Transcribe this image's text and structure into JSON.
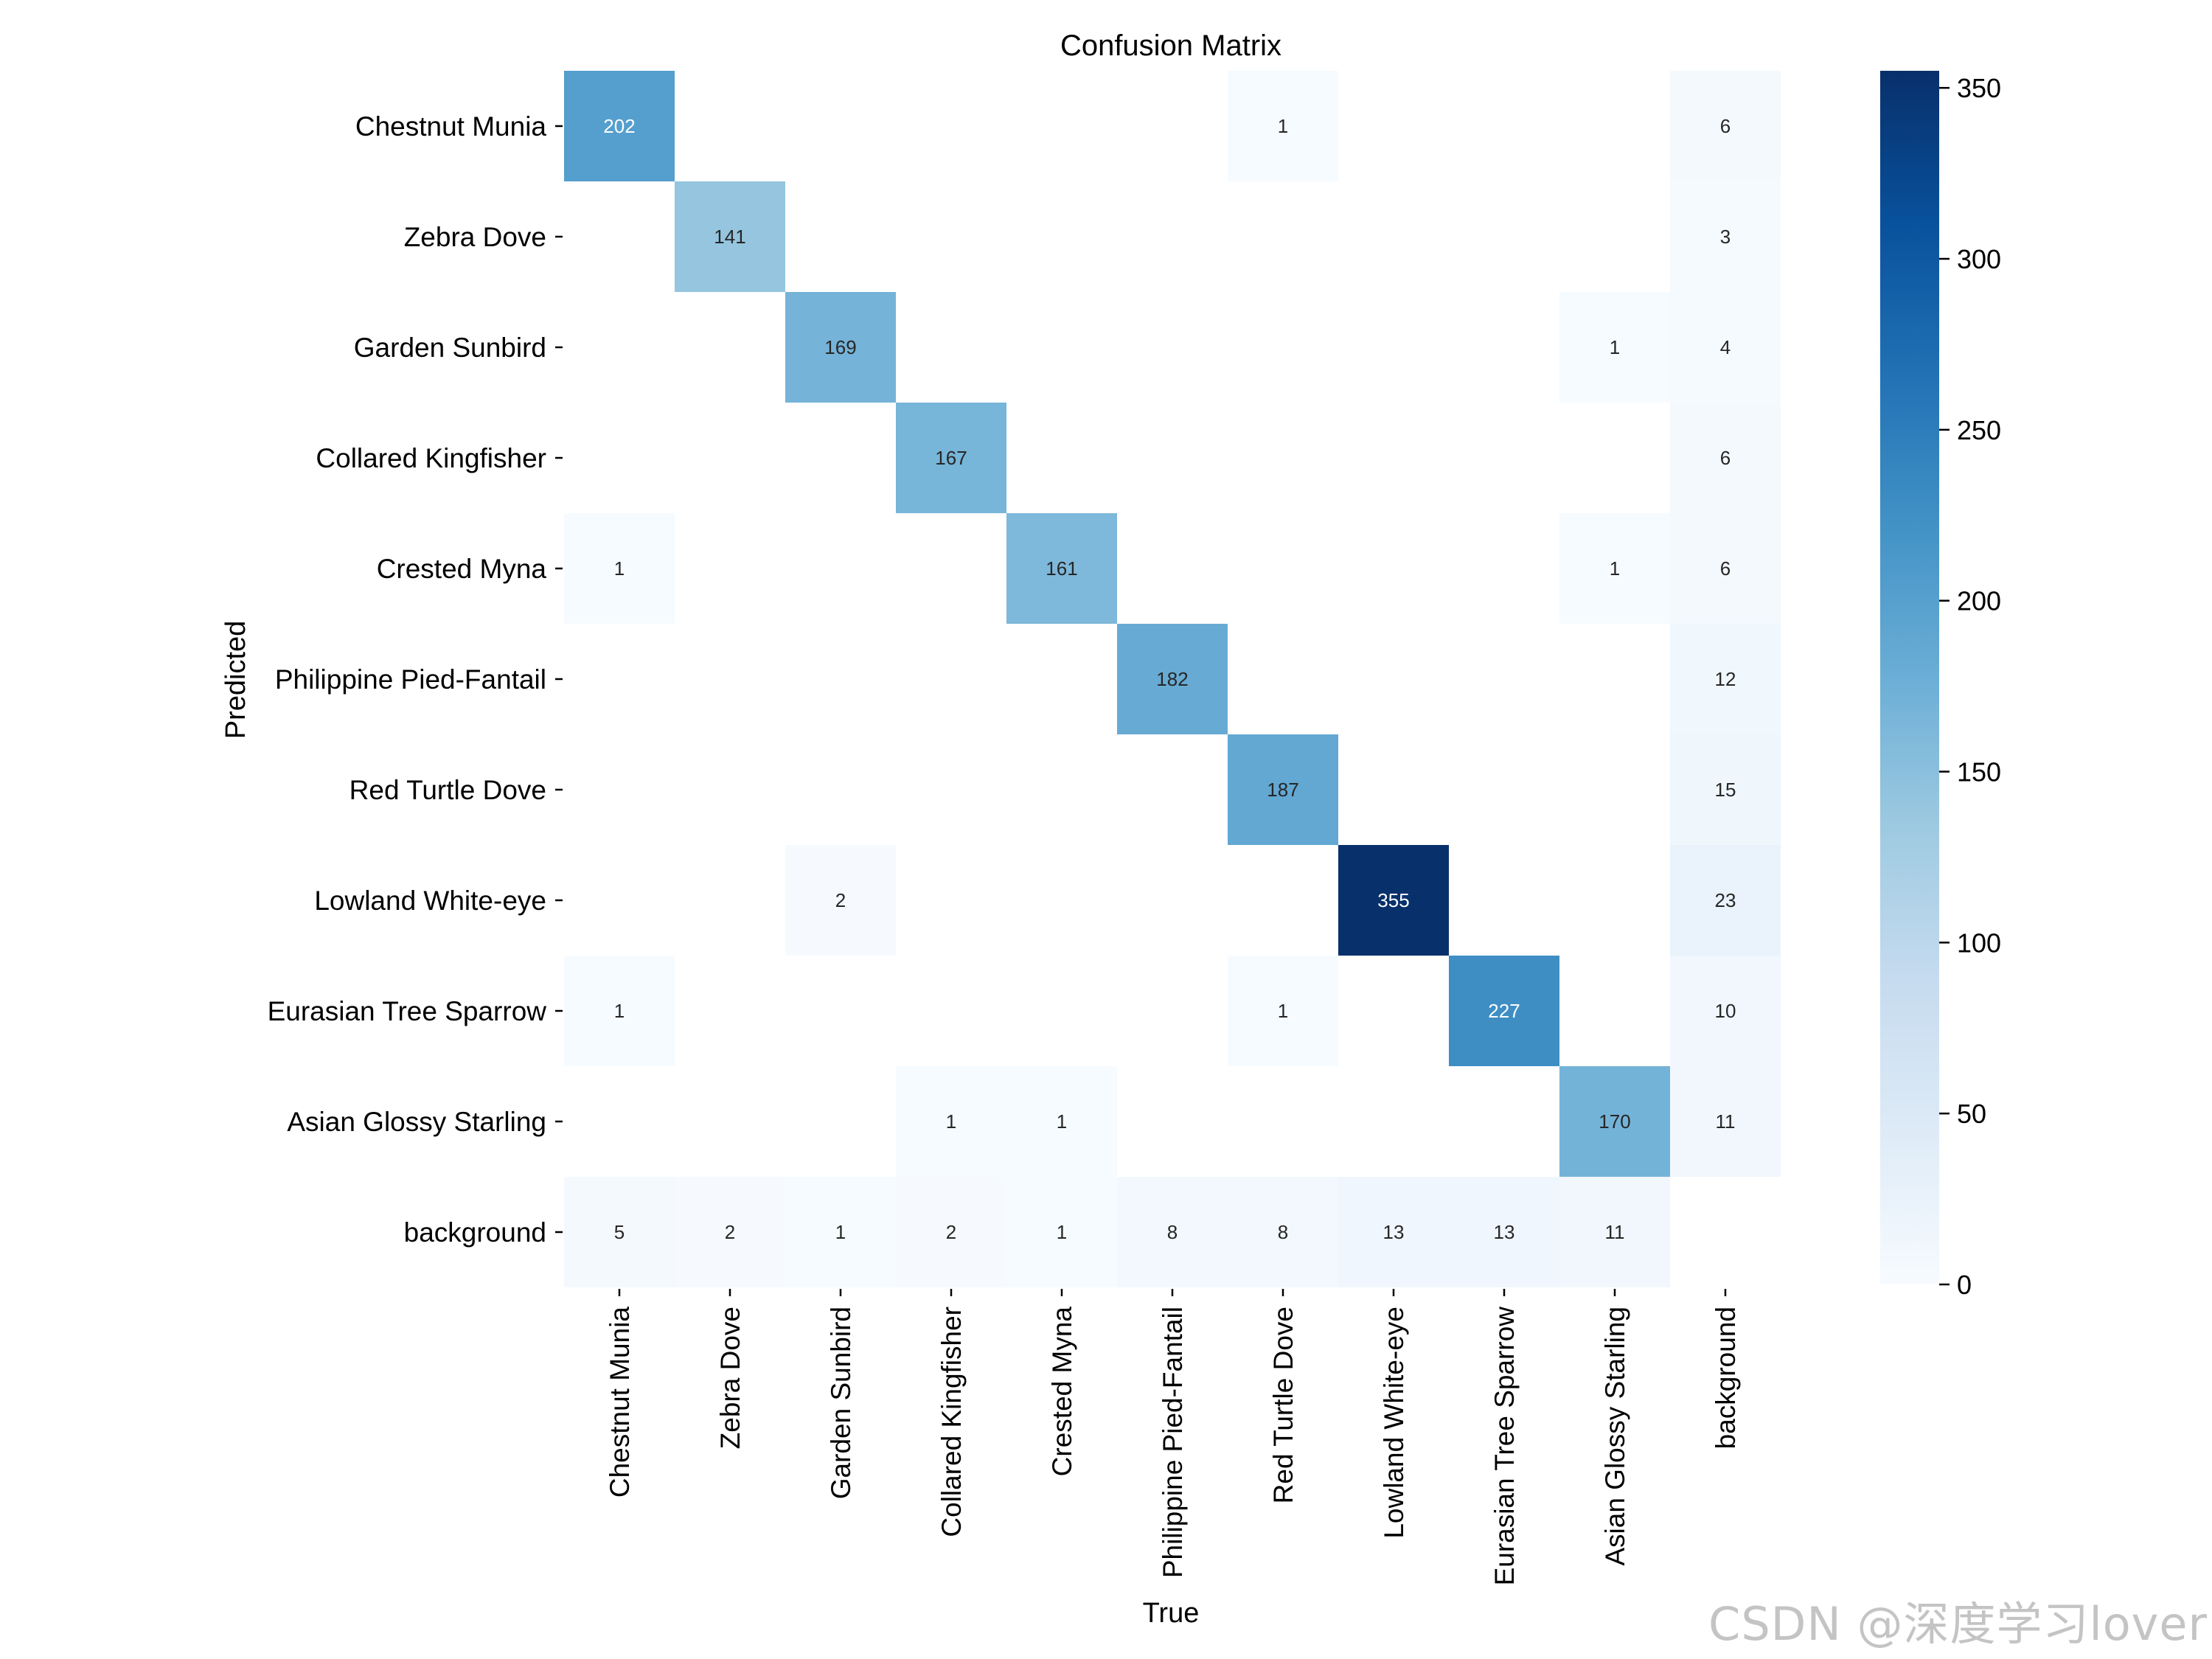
{
  "chart_data": {
    "type": "heatmap",
    "title": "Confusion Matrix",
    "xlabel": "True",
    "ylabel": "Predicted",
    "colormap": "Blues",
    "colorbar": {
      "min": 0,
      "max": 355,
      "ticks": [
        0,
        50,
        100,
        150,
        200,
        250,
        300,
        350
      ]
    },
    "classes": [
      "Chestnut Munia",
      "Zebra Dove",
      "Garden Sunbird",
      "Collared Kingfisher",
      "Crested Myna",
      "Philippine Pied-Fantail",
      "Red Turtle Dove",
      "Lowland White-eye",
      "Eurasian Tree Sparrow",
      "Asian Glossy Starling",
      "background"
    ],
    "matrix": [
      [
        202,
        0,
        0,
        0,
        0,
        0,
        1,
        0,
        0,
        0,
        6
      ],
      [
        0,
        141,
        0,
        0,
        0,
        0,
        0,
        0,
        0,
        0,
        3
      ],
      [
        0,
        0,
        169,
        0,
        0,
        0,
        0,
        0,
        0,
        1,
        4
      ],
      [
        0,
        0,
        0,
        167,
        0,
        0,
        0,
        0,
        0,
        0,
        6
      ],
      [
        1,
        0,
        0,
        0,
        161,
        0,
        0,
        0,
        0,
        1,
        6
      ],
      [
        0,
        0,
        0,
        0,
        0,
        182,
        0,
        0,
        0,
        0,
        12
      ],
      [
        0,
        0,
        0,
        0,
        0,
        0,
        187,
        0,
        0,
        0,
        15
      ],
      [
        0,
        0,
        2,
        0,
        0,
        0,
        0,
        355,
        0,
        0,
        23
      ],
      [
        1,
        0,
        0,
        0,
        0,
        0,
        1,
        0,
        227,
        0,
        10
      ],
      [
        0,
        0,
        0,
        1,
        1,
        0,
        0,
        0,
        0,
        170,
        11
      ],
      [
        5,
        2,
        1,
        2,
        1,
        8,
        8,
        13,
        13,
        11,
        0
      ]
    ]
  },
  "watermark": "CSDN @深度学习lover"
}
